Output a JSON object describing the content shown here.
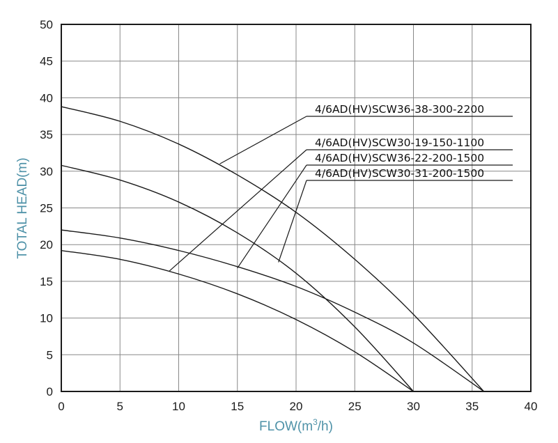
{
  "chart_data": {
    "type": "line",
    "title": "",
    "xlabel": "FLOW(m³/h)",
    "xlabel_parts": [
      "FLOW(m",
      "3",
      "/h)"
    ],
    "ylabel": "TOTAL HEAD(m)",
    "xlim": [
      0,
      40
    ],
    "ylim": [
      0,
      50
    ],
    "xticks": [
      0,
      5,
      10,
      15,
      20,
      25,
      30,
      35,
      40
    ],
    "yticks": [
      0,
      5,
      10,
      15,
      20,
      25,
      30,
      35,
      40,
      45,
      50
    ],
    "grid": true,
    "colors": {
      "curve": "#1a1a1a",
      "grid": "#888888",
      "axis_title": "#4f92a8"
    },
    "series": [
      {
        "name": "4/6AD(HV)SCW36-38-300-2200",
        "x": [
          0,
          5,
          10,
          15,
          20,
          25,
          30,
          36
        ],
        "y": [
          38.8,
          36.8,
          33.7,
          29.5,
          24.4,
          18.0,
          10.5,
          0
        ],
        "label_at": [
          13.5,
          31.0
        ]
      },
      {
        "name": "4/6AD(HV)SCW30-19-150-1100",
        "x": [
          0,
          5,
          10,
          15,
          20,
          25,
          30
        ],
        "y": [
          19.2,
          18.0,
          16.0,
          13.3,
          9.8,
          5.4,
          0
        ],
        "label_at": [
          9.2,
          16.4
        ]
      },
      {
        "name": "4/6AD(HV)SCW36-22-200-1500",
        "x": [
          0,
          5,
          10,
          15,
          20,
          25,
          30,
          36
        ],
        "y": [
          22.0,
          20.9,
          19.2,
          17.0,
          14.3,
          10.8,
          6.6,
          0
        ],
        "label_at": [
          15.0,
          16.8
        ]
      },
      {
        "name": "4/6AD(HV)SCW30-31-200-1500",
        "x": [
          0,
          5,
          10,
          15,
          20,
          25,
          30
        ],
        "y": [
          30.8,
          28.8,
          25.8,
          21.6,
          16.1,
          8.8,
          0
        ],
        "label_at": [
          18.5,
          17.6
        ]
      }
    ],
    "legend_order": [
      0,
      1,
      2,
      3
    ]
  }
}
